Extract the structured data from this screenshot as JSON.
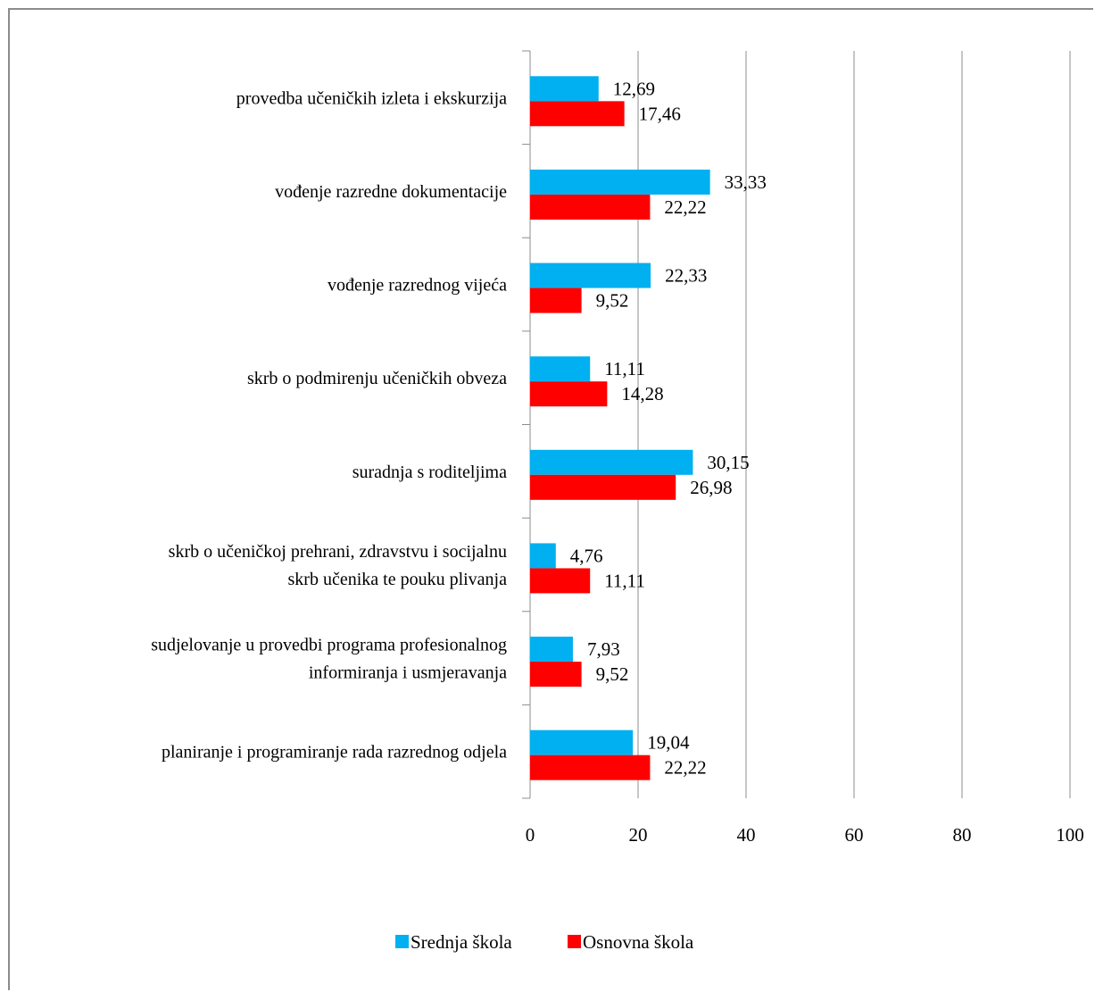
{
  "chart_data": {
    "type": "bar",
    "orientation": "horizontal",
    "title": "",
    "xlabel": "",
    "ylabel": "",
    "xlim": [
      0,
      100
    ],
    "x_ticks": [
      "0",
      "20",
      "40",
      "60",
      "80",
      "100"
    ],
    "grid": "vertical",
    "legend_position": "bottom",
    "categories": [
      [
        "provedba učeničkih izleta i ekskurzija"
      ],
      [
        "vođenje razredne dokumentacije"
      ],
      [
        "vođenje razrednog vijeća"
      ],
      [
        "skrb o podmirenju učeničkih obveza"
      ],
      [
        "suradnja s roditeljima"
      ],
      [
        "skrb o učeničkoj prehrani, zdravstvu i socijalnu",
        "skrb učenika te pouku plivanja"
      ],
      [
        "sudjelovanje u provedbi programa profesionalnog",
        "informiranja i usmjeravanja"
      ],
      [
        "planiranje i programiranje rada razrednog odjela"
      ]
    ],
    "series": [
      {
        "name": "Srednja škola",
        "color": "#00b0f0",
        "values": [
          12.69,
          33.33,
          22.33,
          11.11,
          30.15,
          4.76,
          7.93,
          19.04
        ],
        "labels": [
          "12,69",
          "33,33",
          "22,33",
          "11,11",
          "30,15",
          "4,76",
          "7,93",
          "19,04"
        ]
      },
      {
        "name": "Osnovna škola",
        "color": "#ff0000",
        "values": [
          17.46,
          22.22,
          9.52,
          14.28,
          26.98,
          11.11,
          9.52,
          22.22
        ],
        "labels": [
          "17,46",
          "22,22",
          "9,52",
          "14,28",
          "26,98",
          "11,11",
          "9,52",
          "22,22"
        ]
      }
    ]
  }
}
